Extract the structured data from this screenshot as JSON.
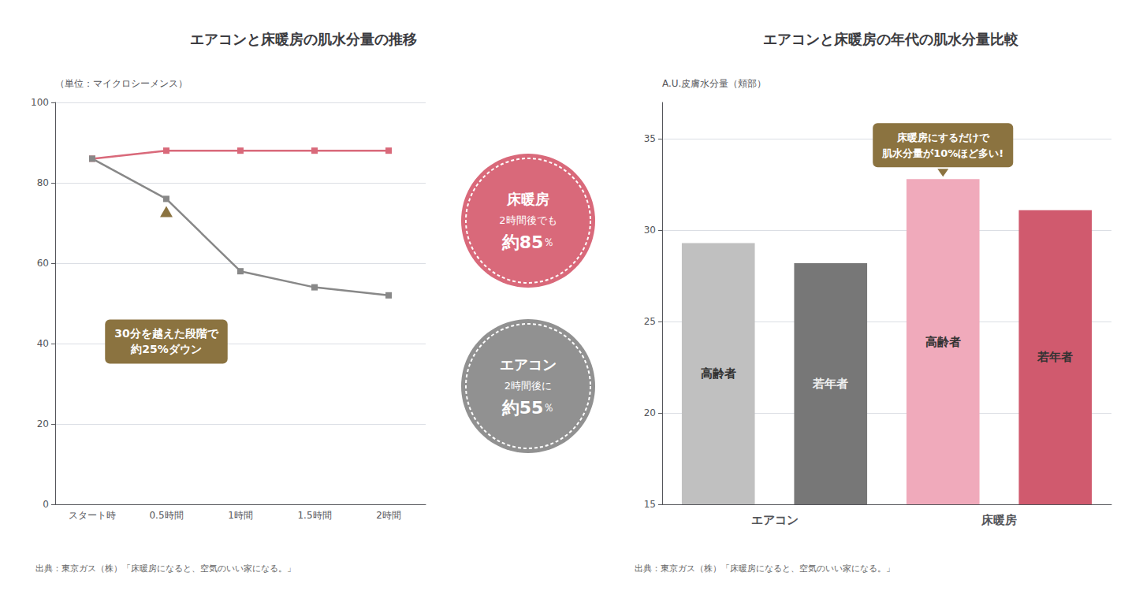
{
  "chart_data": [
    {
      "type": "line",
      "title": "エアコンと床暖房の肌水分量の推移",
      "ylabel": "（単位：マイクロシーメンス）",
      "categories": [
        "スタート時",
        "0.5時間",
        "1時間",
        "1.5時間",
        "2時間"
      ],
      "series": [
        {
          "name": "床暖房",
          "color": "#d9697a",
          "marker": "square",
          "values": [
            86,
            88,
            88,
            88,
            88
          ]
        },
        {
          "name": "エアコン",
          "color": "#888888",
          "marker": "square",
          "values": [
            86,
            76,
            58,
            54,
            52
          ]
        }
      ],
      "ylim": [
        0,
        100
      ],
      "yticks": [
        0,
        20,
        40,
        60,
        80,
        100
      ],
      "grid": true,
      "annotations": [
        {
          "text": "30分を越えた段階で\n約25%ダウン",
          "color": "#8B7340",
          "series": "エアコン",
          "x": "0.5時間"
        }
      ],
      "callouts": [
        {
          "title": "床暖房",
          "text": "2時間後でも",
          "figure": "約85",
          "unit": "％",
          "color": "#d9697a"
        },
        {
          "title": "エアコン",
          "text": "2時間後に",
          "figure": "約55",
          "unit": "％",
          "color": "#919191"
        }
      ],
      "source": "出典：東京ガス（株）「床暖房になると、空気のいい家になる。」"
    },
    {
      "type": "bar",
      "title": "エアコンと床暖房の年代の肌水分量比較",
      "ylabel": "A.U.皮膚水分量（頬部）",
      "categories": [
        "高齢者",
        "若年者",
        "高齢者",
        "若年者"
      ],
      "groups": [
        "エアコン",
        "床暖房"
      ],
      "values": [
        29.3,
        28.2,
        32.8,
        31.1
      ],
      "colors": [
        "#c0c0c0",
        "#777777",
        "#f0aabb",
        "#d05a6e"
      ],
      "ylim": [
        15,
        37
      ],
      "yticks": [
        15,
        20,
        25,
        30,
        35
      ],
      "grid": true,
      "annotations": [
        {
          "text": "床暖房にするだけで\n肌水分量が10%ほど多い!",
          "color": "#8B7340"
        }
      ],
      "source": "出典：東京ガス（株）「床暖房になると、空気のいい家になる。」"
    }
  ]
}
